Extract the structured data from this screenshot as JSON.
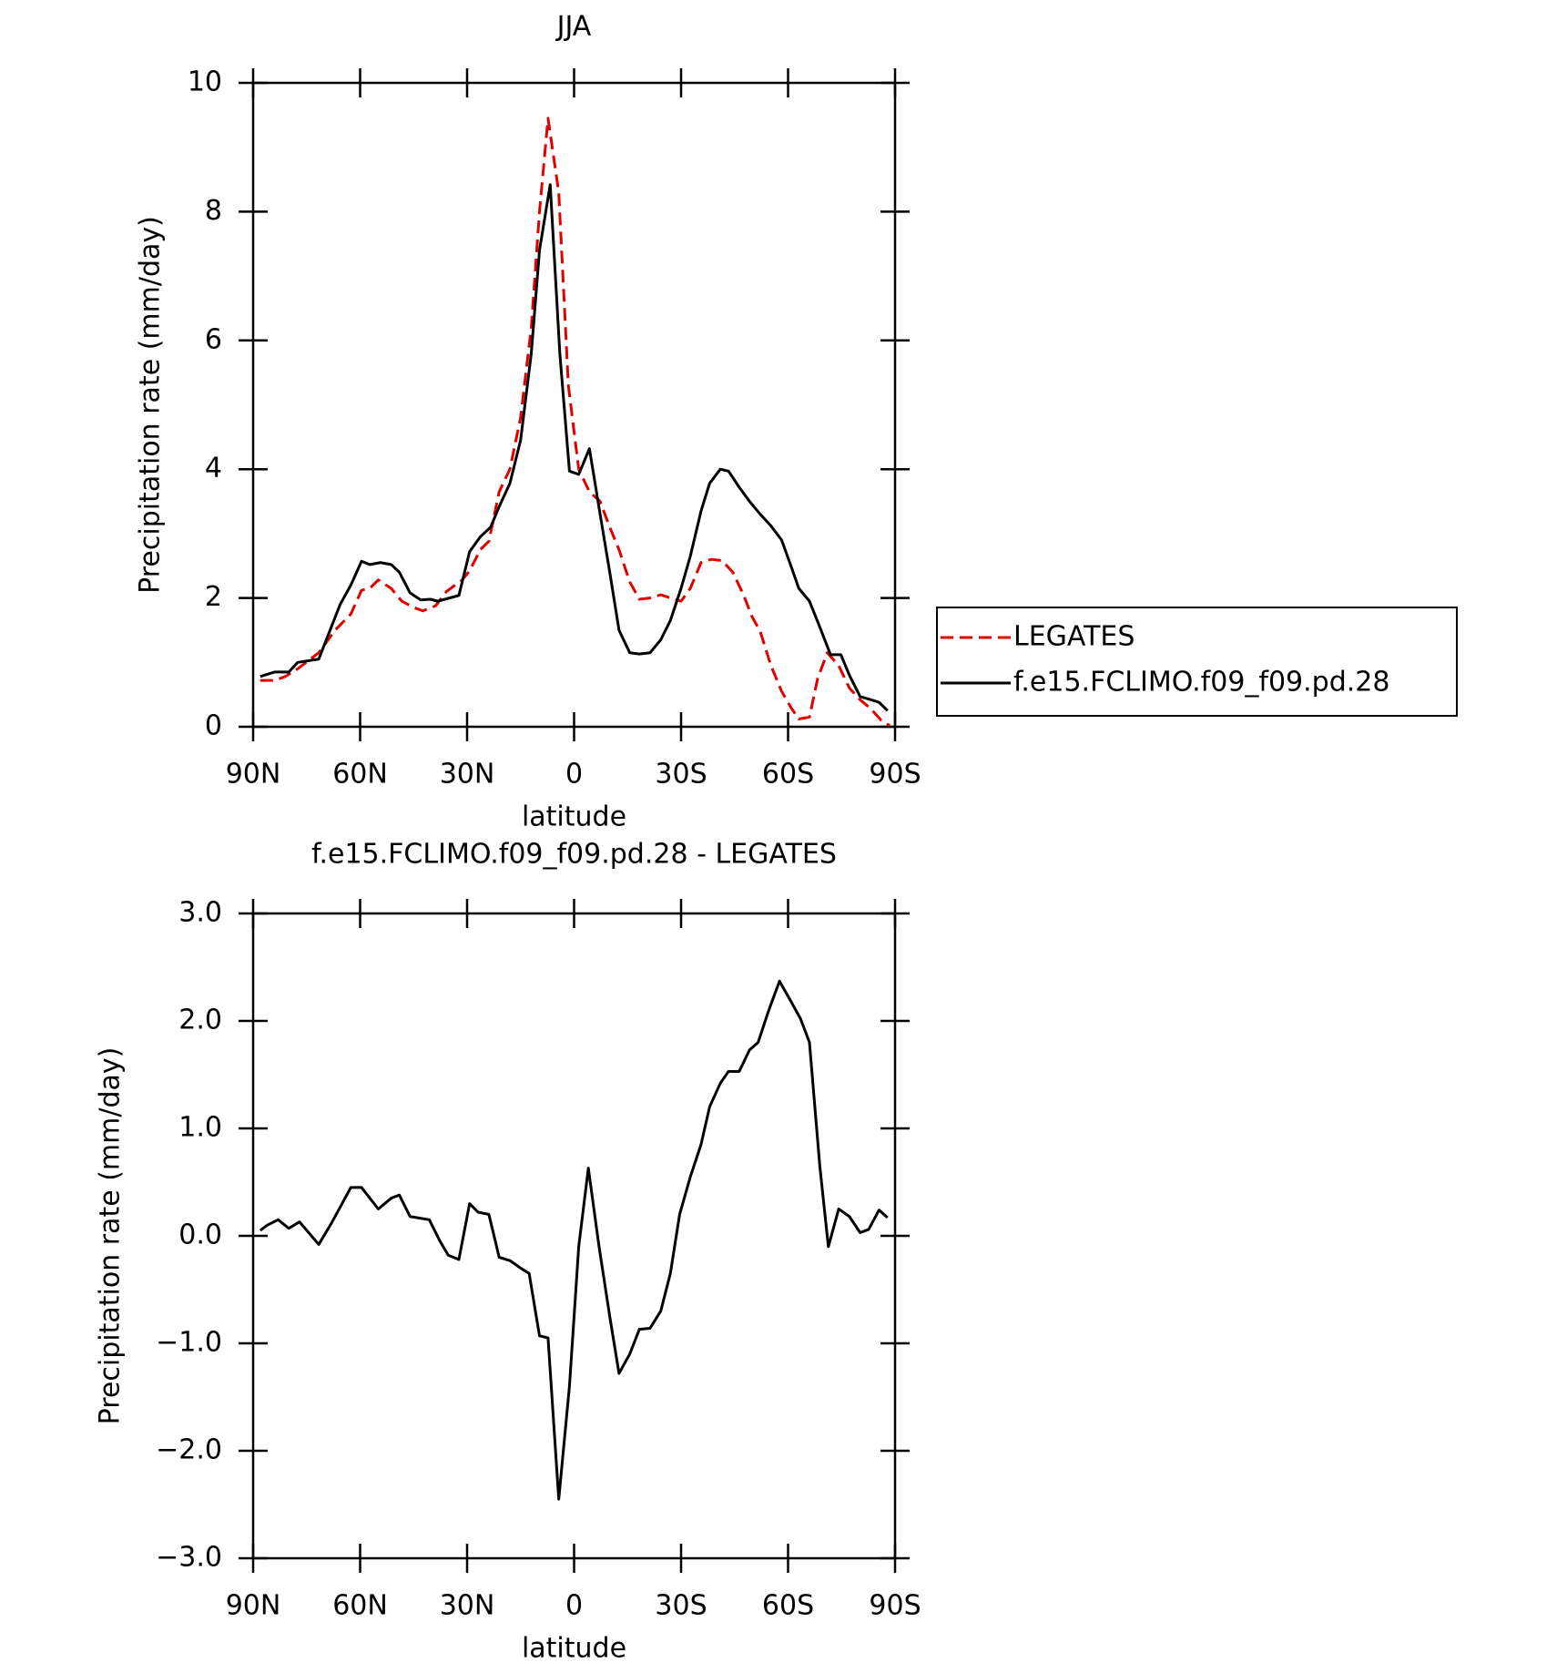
{
  "chart_data": [
    {
      "type": "line",
      "title": "JJA",
      "xlabel": "latitude",
      "ylabel": "Precipitation rate (mm/day)",
      "xlim": [
        90,
        -90
      ],
      "xticks": [
        {
          "value": 90,
          "label": "90N"
        },
        {
          "value": 60,
          "label": "60N"
        },
        {
          "value": 30,
          "label": "30N"
        },
        0,
        {
          "value": -30,
          "label": "30S"
        },
        {
          "value": -60,
          "label": "60S"
        },
        {
          "value": -90,
          "label": "90S"
        }
      ],
      "ylim": [
        0,
        10
      ],
      "yticks": [
        0,
        2,
        4,
        6,
        8,
        10
      ],
      "legend": "right",
      "series": [
        {
          "name": "LEGATES",
          "color": "#e00000",
          "linestyle": "dashed",
          "x": [
            88,
            84,
            81,
            77.5,
            71.6,
            67,
            62.6,
            59.6,
            57.3,
            54.9,
            51.3,
            48.3,
            44.8,
            42.4,
            38.8,
            35.8,
            31.4,
            29.3,
            26.3,
            23.9,
            21,
            18,
            15,
            12,
            9.7,
            7.3,
            4.3,
            1.6,
            -1.3,
            -4.3,
            -7.3,
            -10,
            -12.6,
            -15.6,
            -18.3,
            -21.3,
            -24.3,
            -27,
            -30,
            -32.6,
            -35.6,
            -38.5,
            -41.5,
            -44.5,
            -47.5,
            -49.8,
            -52.2,
            -55.2,
            -58.2,
            -60.8,
            -63,
            -66,
            -68.3,
            -71,
            -74.2,
            -77.2,
            -80.2,
            -83.2,
            -86.1,
            -88.5
          ],
          "values": [
            0.72,
            0.72,
            0.78,
            0.9,
            1.15,
            1.5,
            1.75,
            2.12,
            2.15,
            2.28,
            2.15,
            1.95,
            1.85,
            1.8,
            1.88,
            2.1,
            2.28,
            2.42,
            2.75,
            2.88,
            3.65,
            4.0,
            4.8,
            6.2,
            8.0,
            9.45,
            8.3,
            5.3,
            4.0,
            3.65,
            3.5,
            3.1,
            2.75,
            2.25,
            1.98,
            2.0,
            2.05,
            2.0,
            1.95,
            2.15,
            2.55,
            2.6,
            2.58,
            2.4,
            2.05,
            1.72,
            1.48,
            0.95,
            0.55,
            0.3,
            0.12,
            0.15,
            0.75,
            1.15,
            0.95,
            0.6,
            0.42,
            0.28,
            0.1,
            0.02
          ]
        },
        {
          "name": "f.e15.FCLIMO.f09_f09.pd.28",
          "color": "#000000",
          "linestyle": "solid",
          "x": [
            88,
            84,
            80,
            77.5,
            71.6,
            65.6,
            62.6,
            59.6,
            57.3,
            54.3,
            51.3,
            49,
            46,
            43,
            40.3,
            38.2,
            32.3,
            29.3,
            26.3,
            23.4,
            21,
            18,
            15,
            12,
            9.7,
            6.7,
            4,
            1.3,
            -1.3,
            -4.3,
            -7.3,
            -10,
            -12.6,
            -15.6,
            -18.3,
            -21.3,
            -24.3,
            -27,
            -30,
            -32.6,
            -35.6,
            -38,
            -41,
            -43.3,
            -46.3,
            -49.2,
            -52.2,
            -55.2,
            -58.2,
            -60.8,
            -63,
            -66,
            -68.9,
            -71.9,
            -74.8,
            -77.2,
            -80.2,
            -83.2,
            -85.5,
            -87.9
          ],
          "values": [
            0.78,
            0.85,
            0.85,
            1.0,
            1.05,
            1.9,
            2.2,
            2.57,
            2.52,
            2.55,
            2.52,
            2.4,
            2.08,
            1.97,
            1.98,
            1.95,
            2.04,
            2.72,
            2.95,
            3.1,
            3.42,
            3.78,
            4.45,
            5.8,
            7.4,
            8.42,
            5.8,
            3.97,
            3.92,
            4.32,
            3.3,
            2.4,
            1.5,
            1.15,
            1.13,
            1.15,
            1.35,
            1.65,
            2.15,
            2.65,
            3.35,
            3.78,
            4.0,
            3.97,
            3.72,
            3.5,
            3.3,
            3.12,
            2.9,
            2.5,
            2.15,
            1.95,
            1.55,
            1.12,
            1.12,
            0.8,
            0.47,
            0.42,
            0.38,
            0.25
          ]
        }
      ]
    },
    {
      "type": "line",
      "title": "f.e15.FCLIMO.f09_f09.pd.28 - LEGATES",
      "xlabel": "latitude",
      "ylabel": "Precipitation rate (mm/day)",
      "xlim": [
        90,
        -90
      ],
      "xticks": [
        {
          "value": 90,
          "label": "90N"
        },
        {
          "value": 60,
          "label": "60N"
        },
        {
          "value": 30,
          "label": "30N"
        },
        0,
        {
          "value": -30,
          "label": "30S"
        },
        {
          "value": -60,
          "label": "60S"
        },
        {
          "value": -90,
          "label": "90S"
        }
      ],
      "ylim": [
        -3,
        3
      ],
      "yticks": [
        {
          "value": -3,
          "label": "−3.0"
        },
        {
          "value": -2,
          "label": "−2.0"
        },
        {
          "value": -1,
          "label": "−1.0"
        },
        {
          "value": 0,
          "label": "0.0"
        },
        {
          "value": 1,
          "label": "1.0"
        },
        {
          "value": 2,
          "label": "2.0"
        },
        {
          "value": 3,
          "label": "3.0"
        }
      ],
      "series": [
        {
          "color": "#000000",
          "linestyle": "solid",
          "x": [
            88,
            86,
            83,
            80,
            77,
            71.6,
            68,
            62.6,
            59.6,
            54.9,
            51.3,
            49,
            46,
            40.6,
            37.6,
            35.3,
            32.3,
            29.3,
            26.9,
            23.9,
            21,
            18,
            15,
            12.6,
            9.7,
            7.3,
            4.3,
            1.3,
            -1.3,
            -4,
            -7,
            -10,
            -12.6,
            -15.6,
            -18.3,
            -21.3,
            -24.3,
            -27,
            -29.6,
            -32.6,
            -35.6,
            -38,
            -41,
            -43.3,
            -46.3,
            -49.2,
            -51.6,
            -54.6,
            -57.6,
            -60.5,
            -63.5,
            -66,
            -68.9,
            -71.3,
            -74.2,
            -77.2,
            -80.2,
            -82.6,
            -85.5,
            -87.9
          ],
          "values": [
            0.05,
            0.1,
            0.15,
            0.07,
            0.13,
            -0.08,
            0.12,
            0.45,
            0.45,
            0.25,
            0.35,
            0.38,
            0.18,
            0.15,
            -0.05,
            -0.18,
            -0.22,
            0.3,
            0.22,
            0.2,
            -0.2,
            -0.23,
            -0.3,
            -0.35,
            -0.93,
            -0.95,
            -2.45,
            -1.4,
            -0.1,
            0.63,
            -0.1,
            -0.75,
            -1.28,
            -1.1,
            -0.87,
            -0.86,
            -0.7,
            -0.35,
            0.2,
            0.55,
            0.85,
            1.2,
            1.42,
            1.53,
            1.53,
            1.73,
            1.8,
            2.1,
            2.37,
            2.2,
            2.02,
            1.8,
            0.65,
            -0.1,
            0.25,
            0.18,
            0.03,
            0.06,
            0.24,
            0.17
          ]
        }
      ]
    }
  ]
}
